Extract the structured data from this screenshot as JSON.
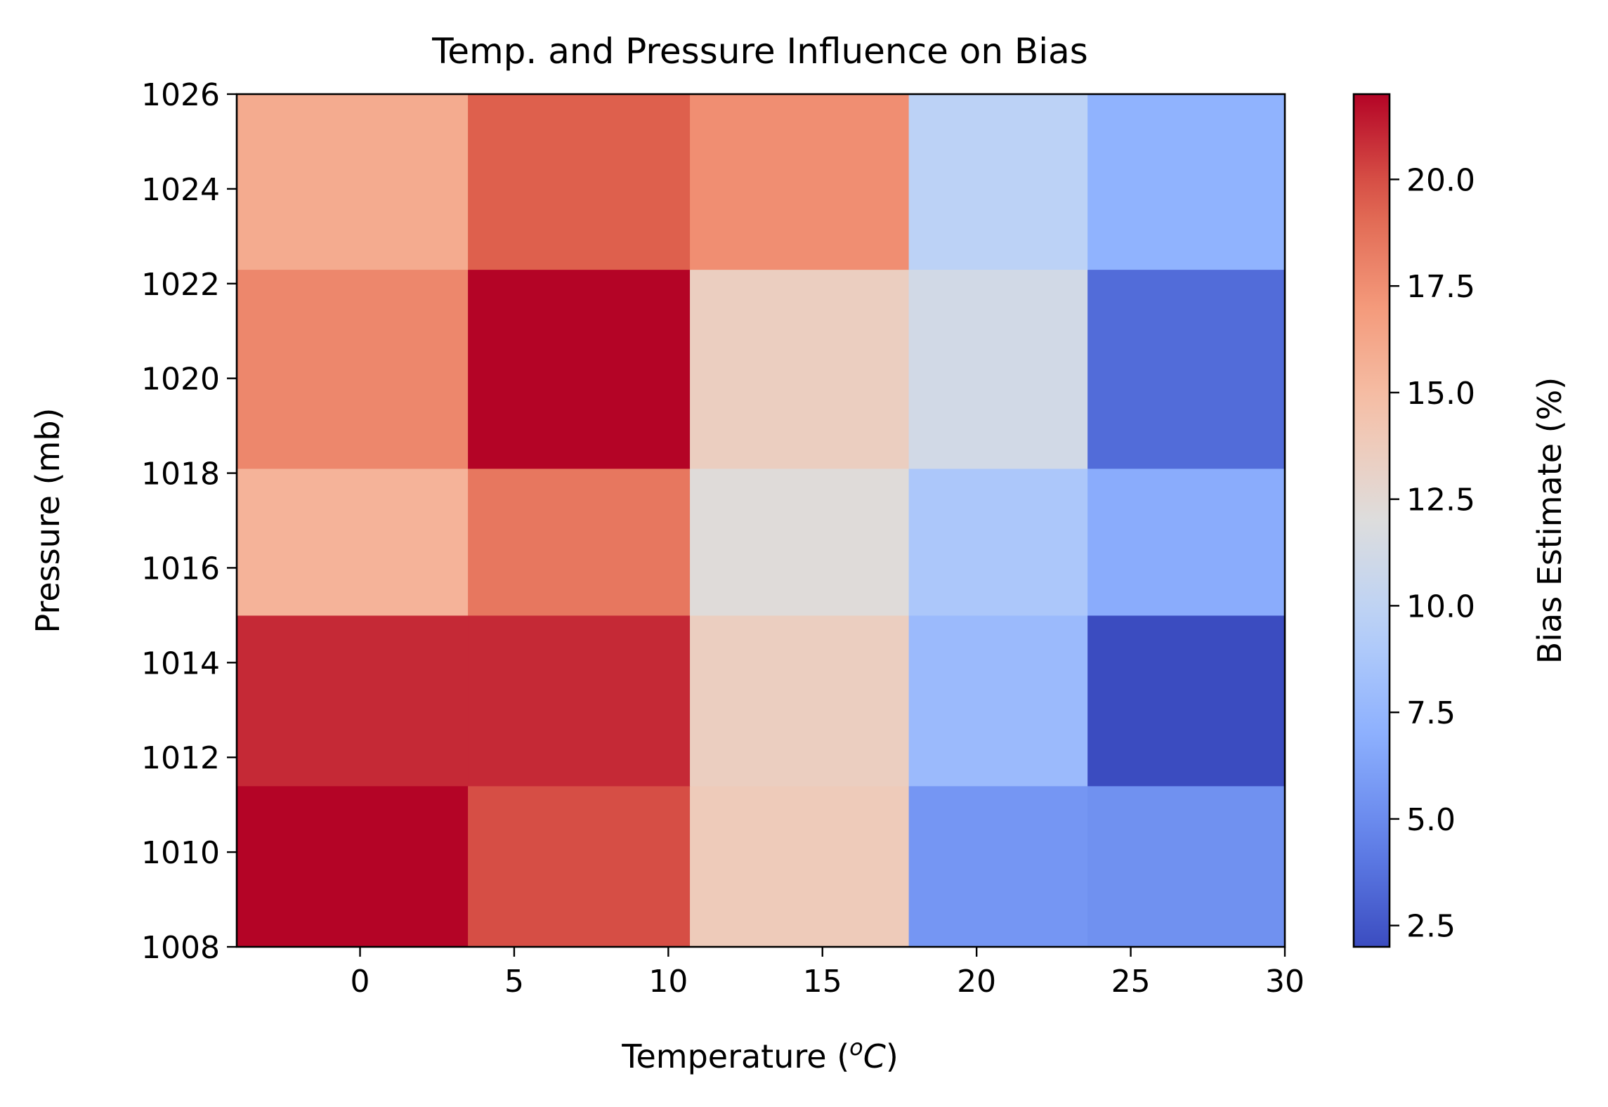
{
  "chart_data": {
    "type": "heatmap",
    "title": "Temp. and Pressure Influence on Bias",
    "xlabel": "Temperature (",
    "xlabel_unit_sup": "o",
    "xlabel_unit_base": "C",
    "xlabel_close": ")",
    "ylabel": "Pressure (mb)",
    "colorbar_label": "Bias Estimate (%)",
    "colormap": "coolwarm",
    "xlim": [
      -4,
      30
    ],
    "ylim": [
      1008,
      1026
    ],
    "color_range": [
      2,
      22
    ],
    "x_ticks": [
      "0",
      "5",
      "10",
      "15",
      "20",
      "25",
      "30"
    ],
    "x_tick_values": [
      0,
      5,
      10,
      15,
      20,
      25,
      30
    ],
    "y_ticks": [
      "1008",
      "1010",
      "1012",
      "1014",
      "1016",
      "1018",
      "1020",
      "1022",
      "1024",
      "1026"
    ],
    "y_tick_values": [
      1008,
      1010,
      1012,
      1014,
      1016,
      1018,
      1020,
      1022,
      1024,
      1026
    ],
    "colorbar_ticks": [
      "2.5",
      "5.0",
      "7.5",
      "10.0",
      "12.5",
      "15.0",
      "17.5",
      "20.0"
    ],
    "colorbar_tick_values": [
      2.5,
      5.0,
      7.5,
      10.0,
      12.5,
      15.0,
      17.5,
      20.0
    ],
    "x_edges": [
      -4,
      3.5,
      10.7,
      17.8,
      23.6,
      30
    ],
    "y_edges": [
      1008,
      1011.4,
      1015,
      1018.1,
      1022.3,
      1026
    ],
    "values": [
      [
        22.0,
        20.0,
        13.8,
        5.6,
        5.3
      ],
      [
        21.0,
        21.0,
        13.5,
        7.8,
        2.0
      ],
      [
        15.5,
        18.5,
        12.2,
        8.8,
        6.8
      ],
      [
        17.8,
        22.0,
        13.5,
        11.2,
        3.5
      ],
      [
        16.0,
        19.5,
        17.5,
        9.8,
        7.2
      ]
    ]
  }
}
